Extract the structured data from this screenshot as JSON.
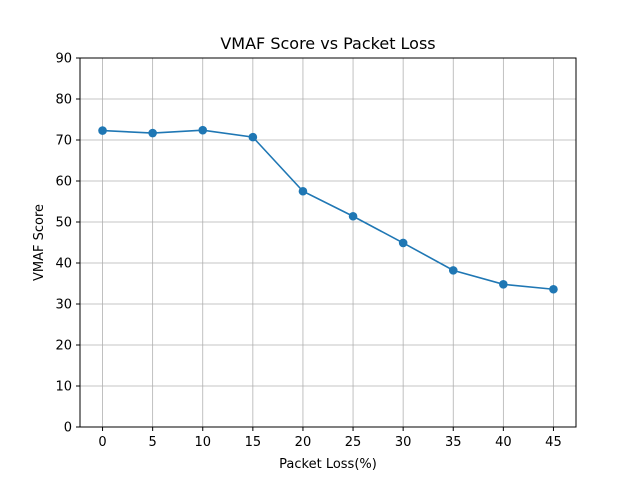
{
  "chart_data": {
    "type": "line",
    "title": "VMAF Score vs Packet Loss",
    "xlabel": "Packet Loss(%)",
    "ylabel": "VMAF Score",
    "x": [
      0,
      5,
      10,
      15,
      20,
      25,
      30,
      35,
      40,
      45
    ],
    "xticks": [
      0,
      5,
      10,
      15,
      20,
      25,
      30,
      35,
      40,
      45
    ],
    "yticks": [
      0,
      10,
      20,
      30,
      40,
      50,
      60,
      70,
      80,
      90
    ],
    "xlim": [
      -2.25,
      47.25
    ],
    "ylim": [
      0,
      90
    ],
    "grid": true,
    "marker": "circle",
    "series": [
      {
        "color": "#1f77b4",
        "values": [
          72.3,
          71.7,
          72.4,
          70.7,
          57.5,
          51.4,
          44.9,
          38.2,
          34.8,
          33.6
        ]
      }
    ]
  }
}
